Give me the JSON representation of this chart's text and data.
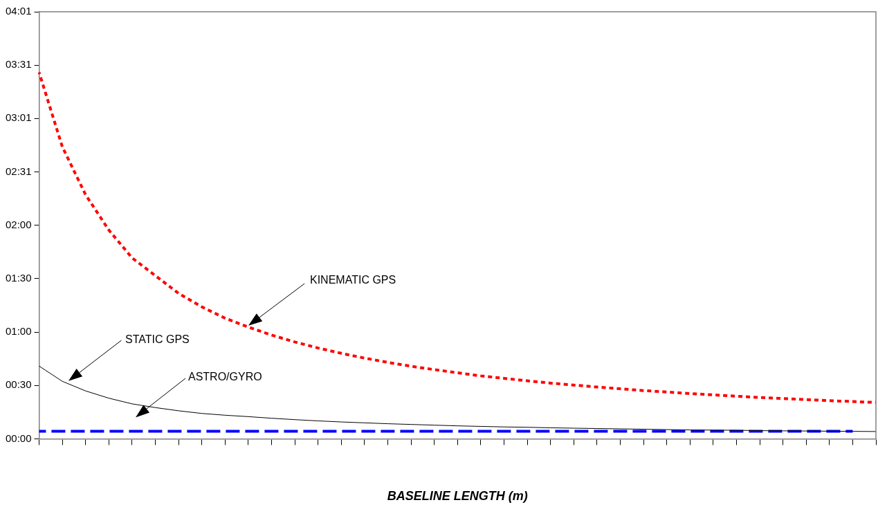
{
  "chart_data": {
    "type": "line",
    "xlabel": "BASELINE LENGTH (m)",
    "categories": [
      null,
      null,
      null,
      null,
      null,
      null,
      null,
      null,
      null,
      null,
      null,
      null,
      null,
      null,
      null,
      null,
      null,
      null,
      null,
      null,
      null,
      null,
      null,
      null,
      null,
      null,
      null,
      null,
      null,
      null,
      null,
      null,
      null,
      null,
      null,
      null,
      null
    ],
    "series": [
      {
        "color": "#ff0000",
        "line_style": "dotted",
        "values": [
          206.6,
          164.6,
          137.6,
          117.7,
          102,
          92,
          82,
          74.4,
          68,
          63,
          58.5,
          54.6,
          51.2,
          48.2,
          45.5,
          43.1,
          40.9,
          39,
          37.2,
          35.5,
          34.1,
          32.7,
          31.4,
          30.3,
          29.2,
          28.2,
          27.2,
          26.4,
          25.5,
          24.8,
          24,
          23.3,
          22.7,
          22.1,
          21.5,
          21,
          20.5
        ]
      },
      {
        "color": "#000000",
        "line_style": "solid",
        "values": [
          41,
          32.4,
          27,
          22.9,
          19.7,
          17.6,
          15.8,
          14.3,
          13.3,
          12.5,
          11.6,
          10.8,
          10.1,
          9.5,
          9,
          8.5,
          8.1,
          7.7,
          7.3,
          7,
          6.7,
          6.5,
          6.2,
          6,
          5.8,
          5.6,
          5.4,
          5.2,
          5,
          4.9,
          4.8,
          4.6,
          4.5,
          4.4,
          4.3,
          4.2,
          4.1
        ]
      },
      {
        "color": "#0000ff",
        "line_style": "dashed",
        "values": [
          4.3,
          4.3,
          4.3,
          4.3,
          4.3,
          4.3,
          4.3,
          4.3,
          4.3,
          4.3,
          4.3,
          4.3,
          4.3,
          4.3,
          4.3,
          4.3,
          4.3,
          4.3,
          4.3,
          4.3,
          4.3,
          4.3,
          4.3,
          4.3,
          4.3,
          4.3,
          4.3,
          4.3,
          4.3,
          4.3,
          4.3,
          4.3,
          4.3,
          4.3,
          4.3,
          4.3,
          null
        ]
      }
    ],
    "ylim": [
      0,
      240.8
    ],
    "yticks": [
      {
        "value": 0,
        "label": "00:00"
      },
      {
        "value": 30.1,
        "label": "00:30"
      },
      {
        "value": 60.2,
        "label": "01:00"
      },
      {
        "value": 90.3,
        "label": "01:30"
      },
      {
        "value": 120.4,
        "label": "02:00"
      },
      {
        "value": 150.5,
        "label": "02:31"
      },
      {
        "value": 180.6,
        "label": "03:01"
      },
      {
        "value": 210.7,
        "label": "03:31"
      },
      {
        "value": 240.8,
        "label": "04:01"
      }
    ],
    "annotations": [
      "KINEMATIC GPS",
      "STATIC GPS",
      "ASTRO/GYRO"
    ],
    "grid": false,
    "legend": false,
    "marker": "none"
  }
}
